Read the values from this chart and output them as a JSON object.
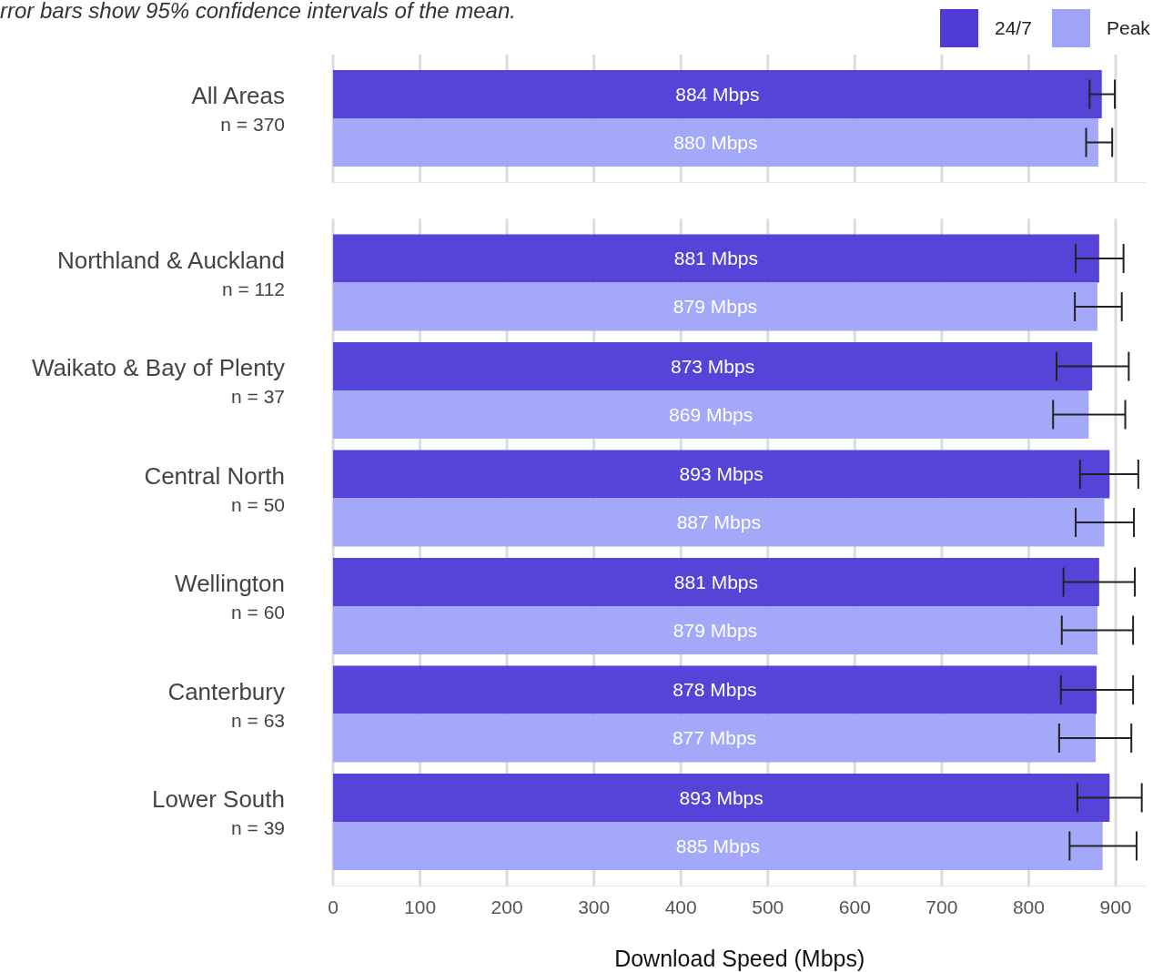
{
  "chart_data": [
    {
      "type": "bar",
      "orientation": "horizontal",
      "categories": [
        "All Areas\nn = 370"
      ],
      "annotations": [
        "rror bars show 95% confidence intervals of the mean."
      ],
      "legend": "top right",
      "grid": "x",
      "tick_labels": "y",
      "xlim": [
        0,
        935
      ],
      "xticks": [
        0,
        100,
        200,
        300,
        400,
        500,
        600,
        700,
        800,
        900
      ],
      "series": [
        {
          "name": "24/7",
          "color": "#4f3bd6",
          "values": [
            884
          ],
          "value_labels": [
            "884 Mbps"
          ],
          "errors": [
            [
              870,
              899
            ]
          ]
        },
        {
          "name": "Peak",
          "color": "#a0a4f8",
          "values": [
            880
          ],
          "value_labels": [
            "880 Mbps"
          ],
          "errors": [
            [
              866,
              896
            ]
          ]
        }
      ]
    },
    {
      "type": "bar",
      "orientation": "horizontal",
      "categories": [
        "Northland & Auckland\nn = 112",
        "Waikato & Bay of Plenty\nn = 37",
        "Central North\nn = 50",
        "Wellington\nn = 60",
        "Canterbury\nn = 63",
        "Lower South\nn = 39"
      ],
      "xlabel": "Download Speed (Mbps)",
      "grid": "x",
      "xlim": [
        0,
        935
      ],
      "xticks": [
        0,
        100,
        200,
        300,
        400,
        500,
        600,
        700,
        800,
        900
      ],
      "series": [
        {
          "color": "#4f3bd6",
          "values": [
            881,
            873,
            893,
            881,
            878,
            893
          ],
          "value_labels": [
            "881 Mbps",
            "873 Mbps",
            "893 Mbps",
            "881 Mbps",
            "878 Mbps",
            "893 Mbps"
          ],
          "errors": [
            [
              854,
              909
            ],
            [
              832,
              915
            ],
            [
              859,
              926
            ],
            [
              840,
              922
            ],
            [
              837,
              920
            ],
            [
              856,
              930
            ]
          ]
        },
        {
          "color": "#a0a4f8",
          "values": [
            879,
            869,
            887,
            879,
            877,
            885
          ],
          "value_labels": [
            "879 Mbps",
            "869 Mbps",
            "887 Mbps",
            "879 Mbps",
            "877 Mbps",
            "885 Mbps"
          ],
          "errors": [
            [
              853,
              907
            ],
            [
              828,
              911
            ],
            [
              854,
              921
            ],
            [
              838,
              920
            ],
            [
              835,
              918
            ],
            [
              847,
              924
            ]
          ]
        }
      ]
    }
  ]
}
